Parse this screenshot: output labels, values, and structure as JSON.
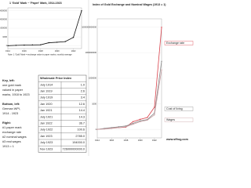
{
  "chart_data": [
    {
      "type": "line",
      "title": "1 'Gold' Mark ~ 'Paper' Mark, 1914-1923",
      "note": "Note: 1 'Gold' Mark = exchange value in paper marks, monthly average",
      "log": true,
      "x": [
        1914,
        1915,
        1916,
        1917,
        1918,
        1919,
        1920,
        1921,
        1922,
        1923
      ],
      "series": [
        {
          "name": "Gold mark",
          "color": "#111111",
          "values": [
            1,
            1.3,
            1.5,
            1.8,
            2,
            10,
            15,
            25,
            700,
            1000000000000
          ]
        }
      ],
      "xticks": [
        1914,
        1916,
        1918,
        1920,
        1922
      ],
      "ylim": [
        0.1,
        10000000000000
      ],
      "yticks": [
        1,
        1000,
        1000000,
        1000000000,
        1000000000000
      ]
    },
    {
      "type": "line",
      "title": "Index of Gold Exchange and Nominal Wages (1913 = 1)",
      "log": true,
      "x": [
        1914,
        1915,
        1916,
        1917,
        1918,
        1919,
        1920,
        1921,
        1922,
        1923
      ],
      "series": [
        {
          "name": "Exchange rate",
          "color": "#d9404a",
          "values": [
            1,
            1.2,
            1.4,
            1.6,
            1.8,
            8,
            15,
            25,
            400,
            1000000000000
          ]
        },
        {
          "name": "Cost of living",
          "color": "#8a8a8a",
          "values": [
            1,
            1.3,
            1.6,
            2,
            2.5,
            5,
            10,
            14,
            80,
            100000000
          ]
        },
        {
          "name": "Wages",
          "color": "#c9a0a4",
          "values": [
            1,
            1.1,
            1.3,
            1.6,
            2,
            4,
            8,
            12,
            50,
            10000000
          ]
        }
      ],
      "xticks": [
        1914,
        1916,
        1918,
        1920,
        1922
      ],
      "ylim": [
        0.1,
        10000000000000
      ],
      "yticks": [
        1,
        1000,
        1000000,
        1000000000,
        1000000000000
      ],
      "footer": "www.sffrog.com"
    }
  ],
  "key": [
    "Key, left:",
    "one gold mark",
    "valued in paper",
    "marks, 1918 to 1923",
    "",
    "Bottom, left:",
    "German WPI,",
    "1914 - 1923",
    "",
    "Right:",
    "#1 paper mark",
    "exchange rate",
    "#2 nominal wages",
    "#3 real wages",
    "1913 = 1"
  ],
  "table": {
    "title": "Wholesale Price Index",
    "rows": [
      [
        "July 1914",
        "1.0"
      ],
      [
        "Jan 1919",
        "2.6"
      ],
      [
        "July 1919",
        "3.4"
      ],
      [
        "Jan 1920",
        "12.6"
      ],
      [
        "Jan 1921",
        "14.4"
      ],
      [
        "July 1921",
        "14.3"
      ],
      [
        "Jan 1922",
        "36.7"
      ],
      [
        "July 1922",
        "100.6"
      ],
      [
        "Jan 1923",
        "2785.0"
      ],
      [
        "July 1923",
        "194000.0"
      ],
      [
        "Nov 1923",
        "726000000000.0"
      ]
    ]
  }
}
